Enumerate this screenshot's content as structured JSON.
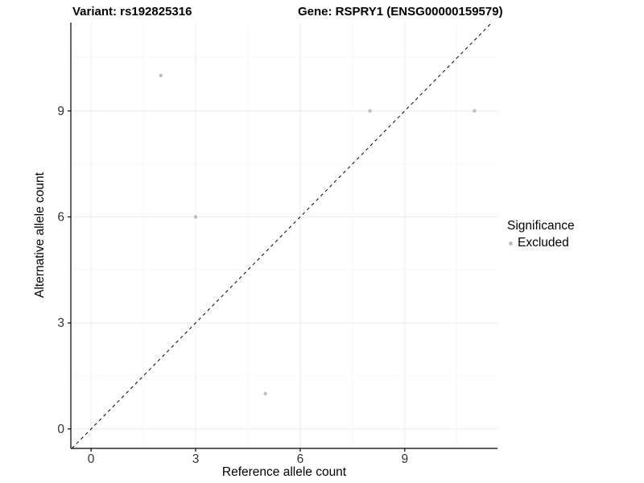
{
  "titles": {
    "variant": "Variant: rs192825316",
    "gene": "Gene: RSPRY1 (ENSG00000159579)"
  },
  "chart_data": {
    "type": "scatter",
    "title": "Variant: rs192825316   Gene: RSPRY1 (ENSG00000159579)",
    "xlabel": "Reference allele count",
    "ylabel": "Alternative allele count",
    "points": [
      {
        "x": 2,
        "y": 10,
        "significance": "Excluded"
      },
      {
        "x": 3,
        "y": 6,
        "significance": "Excluded"
      },
      {
        "x": 5,
        "y": 1,
        "significance": "Excluded"
      },
      {
        "x": 8,
        "y": 9,
        "significance": "Excluded"
      },
      {
        "x": 11,
        "y": 9,
        "significance": "Excluded"
      }
    ],
    "x_ticks": [
      0,
      3,
      6,
      9
    ],
    "y_ticks": [
      0,
      3,
      6,
      9
    ],
    "xlim": [
      -0.58,
      11.66
    ],
    "ylim": [
      -0.55,
      11.5
    ],
    "identity_line": {
      "slope": 1,
      "intercept": 0,
      "style": "dashed",
      "color": "#000000"
    },
    "point_color": "#bdbdbd",
    "point_radius": 2.2,
    "axis_color": "#000000",
    "tick_label_color": "#333333",
    "grid": {
      "major_color": "#ececec",
      "minor_color": "#f6f6f6"
    },
    "legend": {
      "title": "Significance",
      "position": "right",
      "items": [
        {
          "label": "Excluded",
          "color": "#bdbdbd"
        }
      ]
    }
  }
}
